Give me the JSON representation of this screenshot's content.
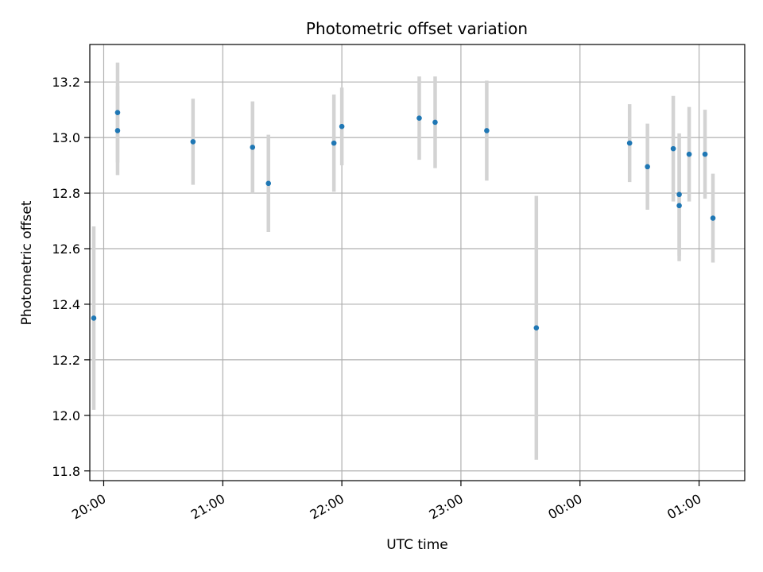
{
  "chart_data": {
    "type": "scatter",
    "title": "Photometric offset variation",
    "xlabel": "UTC time",
    "ylabel": "Photometric offset",
    "x_ticks": [
      "20:00",
      "21:00",
      "22:00",
      "23:00",
      "00:00",
      "01:00"
    ],
    "y_ticks": [
      "11.8",
      "12.0",
      "12.2",
      "12.4",
      "12.6",
      "12.8",
      "13.0",
      "13.2"
    ],
    "xlim": [
      "19:53",
      "01:23"
    ],
    "ylim": [
      11.765,
      13.335
    ],
    "grid": true,
    "marker_color": "#1f77b4",
    "errorbar_color": "#d3d3d3",
    "points": [
      {
        "x": "19:55",
        "y": 12.35,
        "err": 0.33
      },
      {
        "x": "20:07",
        "y": 13.09,
        "err": 0.18
      },
      {
        "x": "20:07",
        "y": 13.025,
        "err": 0.16
      },
      {
        "x": "20:45",
        "y": 12.985,
        "err": 0.155
      },
      {
        "x": "21:15",
        "y": 12.965,
        "err": 0.165
      },
      {
        "x": "21:23",
        "y": 12.835,
        "err": 0.175
      },
      {
        "x": "21:56",
        "y": 12.98,
        "err": 0.175
      },
      {
        "x": "22:00",
        "y": 13.04,
        "err": 0.14
      },
      {
        "x": "22:39",
        "y": 13.07,
        "err": 0.15
      },
      {
        "x": "22:47",
        "y": 13.055,
        "err": 0.165
      },
      {
        "x": "23:13",
        "y": 13.025,
        "err": 0.18
      },
      {
        "x": "23:38",
        "y": 12.315,
        "err": 0.475
      },
      {
        "x": "00:25",
        "y": 12.98,
        "err": 0.14
      },
      {
        "x": "00:34",
        "y": 12.895,
        "err": 0.155
      },
      {
        "x": "00:47",
        "y": 12.96,
        "err": 0.19
      },
      {
        "x": "00:50",
        "y": 12.795,
        "err": 0.22
      },
      {
        "x": "00:50",
        "y": 12.755,
        "err": 0.2
      },
      {
        "x": "00:55",
        "y": 12.94,
        "err": 0.17
      },
      {
        "x": "01:03",
        "y": 12.94,
        "err": 0.16
      },
      {
        "x": "01:07",
        "y": 12.71,
        "err": 0.16
      }
    ]
  }
}
